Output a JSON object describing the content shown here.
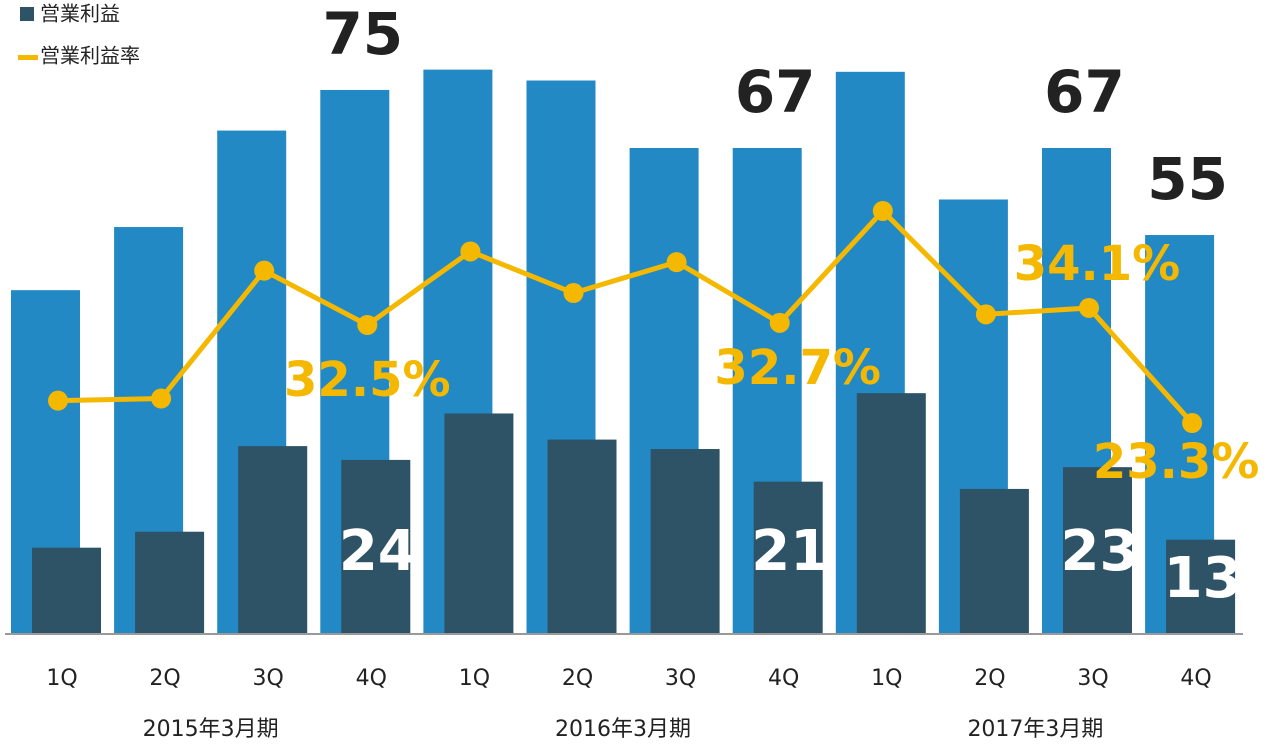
{
  "chart_data": {
    "type": "bar",
    "categories": [
      "1Q",
      "2Q",
      "3Q",
      "4Q",
      "1Q",
      "2Q",
      "3Q",
      "4Q",
      "1Q",
      "2Q",
      "3Q",
      "4Q"
    ],
    "groups": [
      "2015年3月期",
      "2016年3月期",
      "2017年3月期"
    ],
    "ylim": [
      0,
      87.4
    ],
    "y2lim": [
      3.5,
      63
    ],
    "series": [
      {
        "color": "#2389c4",
        "values": [
          47.4,
          56.1,
          69.4,
          75,
          77.8,
          76.3,
          67.0,
          67,
          77.5,
          59.9,
          67,
          55
        ],
        "value_labels": [
          null,
          null,
          null,
          "75",
          null,
          null,
          null,
          "67",
          null,
          null,
          "67",
          "55"
        ]
      },
      {
        "name": "営業利益",
        "color": "#2e5266",
        "values": [
          11.9,
          14.1,
          25.9,
          24,
          30.4,
          26.8,
          25.5,
          21,
          33.2,
          20.0,
          23,
          13
        ],
        "value_labels": [
          null,
          null,
          null,
          "24",
          null,
          null,
          null,
          "21",
          null,
          null,
          "23",
          "13"
        ]
      },
      {
        "name": "営業利益率",
        "type": "line",
        "axis": "y2",
        "color": "#f5b800",
        "values": [
          25.4,
          25.6,
          37.6,
          32.5,
          39.4,
          35.5,
          38.4,
          32.7,
          43.2,
          33.5,
          34.1,
          23.3
        ],
        "value_labels": [
          null,
          null,
          null,
          "32.5%",
          null,
          null,
          null,
          "32.7%",
          null,
          null,
          "34.1%",
          "23.3%"
        ]
      }
    ]
  }
}
